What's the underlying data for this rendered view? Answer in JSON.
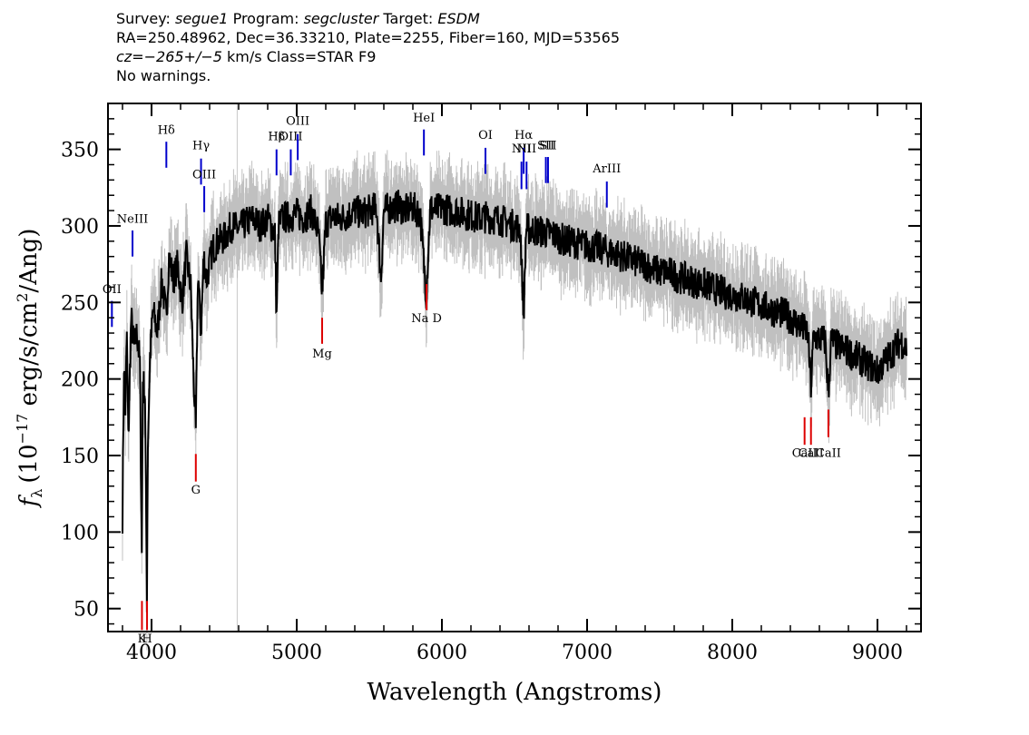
{
  "header": {
    "survey_label": "Survey:",
    "survey_value": "segue1",
    "program_label": "Program:",
    "program_value": "segcluster",
    "target_label": "Target:",
    "target_value": "ESDM",
    "line2": "RA=250.48962, Dec=36.33210, Plate=2255, Fiber=160, MJD=53565",
    "cz_value": "cz=−265+/−5",
    "cz_rest": " km/s Class=STAR F9",
    "line4": "No warnings."
  },
  "chart_data": {
    "type": "line",
    "xlabel": "Wavelength (Angstroms)",
    "ylabel_prefix": "f",
    "ylabel_sub": "λ",
    "ylabel_text": "(10",
    "ylabel_exp": "−17",
    "ylabel_text2": " erg/s/cm",
    "ylabel_exp2": "2",
    "ylabel_text3": "/Ang)",
    "xlim": [
      3700,
      9300
    ],
    "ylim": [
      35,
      380
    ],
    "x_ticks": [
      4000,
      5000,
      6000,
      7000,
      8000,
      9000
    ],
    "x_tick_labels": [
      "4000",
      "5000",
      "6000",
      "7000",
      "8000",
      "9000"
    ],
    "y_ticks": [
      50,
      100,
      150,
      200,
      250,
      300,
      350
    ],
    "y_tick_labels": [
      "50",
      "100",
      "150",
      "200",
      "250",
      "300",
      "350"
    ],
    "vertical_marker_x": 4590,
    "series": [
      {
        "x": [
          3800,
          3810,
          3820,
          3830,
          3840,
          3860,
          3880,
          3900,
          3920,
          3933,
          3940,
          3955,
          3968,
          3975,
          3990,
          4010,
          4040,
          4070,
          4102,
          4120,
          4150,
          4180,
          4210,
          4240,
          4270,
          4290,
          4305,
          4320,
          4340,
          4360,
          4380,
          4420,
          4460,
          4500,
          4550,
          4600,
          4650,
          4700,
          4750,
          4800,
          4850,
          4861,
          4875,
          4900,
          4950,
          5000,
          5050,
          5100,
          5150,
          5175,
          5200,
          5250,
          5300,
          5350,
          5400,
          5450,
          5500,
          5550,
          5580,
          5600,
          5650,
          5700,
          5750,
          5800,
          5850,
          5892,
          5920,
          5950,
          6000,
          6050,
          6100,
          6150,
          6200,
          6250,
          6300,
          6350,
          6400,
          6450,
          6500,
          6540,
          6563,
          6580,
          6600,
          6650,
          6700,
          6750,
          6800,
          6850,
          6900,
          6950,
          7000,
          7050,
          7100,
          7150,
          7200,
          7250,
          7300,
          7350,
          7400,
          7450,
          7500,
          7550,
          7600,
          7650,
          7700,
          7750,
          7800,
          7850,
          7900,
          7950,
          8000,
          8050,
          8100,
          8150,
          8200,
          8250,
          8300,
          8350,
          8400,
          8450,
          8498,
          8520,
          8542,
          8560,
          8600,
          8640,
          8662,
          8680,
          8720,
          8760,
          8800,
          8840,
          8880,
          8920,
          8960,
          9000,
          9040,
          9080,
          9120,
          9160,
          9200
        ],
        "y": [
          110,
          210,
          180,
          230,
          160,
          240,
          220,
          230,
          210,
          85,
          200,
          190,
          55,
          160,
          215,
          245,
          230,
          265,
          240,
          280,
          265,
          275,
          250,
          280,
          260,
          200,
          165,
          270,
          230,
          280,
          265,
          285,
          290,
          292,
          300,
          298,
          302,
          305,
          300,
          305,
          295,
          240,
          300,
          305,
          306,
          308,
          305,
          310,
          295,
          255,
          302,
          306,
          305,
          307,
          310,
          308,
          310,
          312,
          265,
          310,
          312,
          313,
          310,
          312,
          308,
          255,
          312,
          310,
          312,
          310,
          310,
          308,
          307,
          305,
          306,
          305,
          304,
          302,
          300,
          298,
          240,
          298,
          298,
          297,
          296,
          295,
          293,
          290,
          290,
          288,
          287,
          286,
          285,
          283,
          282,
          280,
          278,
          276,
          275,
          272,
          270,
          270,
          268,
          266,
          265,
          263,
          262,
          260,
          258,
          256,
          255,
          254,
          252,
          250,
          248,
          246,
          244,
          243,
          240,
          236,
          232,
          230,
          195,
          228,
          226,
          225,
          190,
          225,
          222,
          220,
          218,
          215,
          213,
          210,
          208,
          205,
          210,
          215,
          220,
          225,
          220
        ]
      }
    ],
    "emission_lines": [
      {
        "label": "Hδ",
        "x": 4102,
        "y1": 338,
        "y2": 355,
        "label_y": 360
      },
      {
        "label": "Hγ",
        "x": 4341,
        "y1": 327,
        "y2": 344,
        "label_y": 350
      },
      {
        "label": "OIII",
        "x": 4363,
        "y1": 309,
        "y2": 326,
        "label_y": 331
      },
      {
        "label": "NeIII",
        "x": 3869,
        "y1": 280,
        "y2": 297,
        "label_y": 302
      },
      {
        "label": "OII",
        "x": 3727,
        "y1": 234,
        "y2": 251,
        "label_y": 256
      },
      {
        "label": "Hβ",
        "x": 4861,
        "y1": 333,
        "y2": 350,
        "label_y": 356
      },
      {
        "label": "OIII",
        "x": 4959,
        "y1": 333,
        "y2": 350,
        "label_y": 356
      },
      {
        "label": "OIII",
        "x": 5007,
        "y1": 343,
        "y2": 360,
        "label_y": 366
      },
      {
        "label": "HeI",
        "x": 5876,
        "y1": 346,
        "y2": 363,
        "label_y": 368
      },
      {
        "label": "OI",
        "x": 6300,
        "y1": 334,
        "y2": 351,
        "label_y": 357
      },
      {
        "label": "NII",
        "x": 6548,
        "y1": 324,
        "y2": 342,
        "label_y": 348
      },
      {
        "label": "Hα",
        "x": 6563,
        "y1": 334,
        "y2": 351,
        "label_y": 357
      },
      {
        "label": "NII",
        "x": 6583,
        "y1": 324,
        "y2": 342,
        "label_y": 348
      },
      {
        "label": "SII",
        "x": 6716,
        "y1": 328,
        "y2": 345,
        "label_y": 350
      },
      {
        "label": "SII",
        "x": 6731,
        "y1": 328,
        "y2": 345,
        "label_y": 350
      },
      {
        "label": "ArIII",
        "x": 7136,
        "y1": 312,
        "y2": 329,
        "label_y": 335
      }
    ],
    "absorption_lines": [
      {
        "label": "K",
        "x": 3934,
        "y1": 36,
        "y2": 55,
        "label_y": 28
      },
      {
        "label": "H",
        "x": 3969,
        "y1": 36,
        "y2": 55,
        "label_y": 28
      },
      {
        "label": "G",
        "x": 4305,
        "y1": 133,
        "y2": 151,
        "label_y": 125
      },
      {
        "label": "Mg",
        "x": 5175,
        "y1": 223,
        "y2": 240,
        "label_y": 214
      },
      {
        "label": "Na D",
        "x": 5894,
        "y1": 245,
        "y2": 262,
        "label_y": 237
      },
      {
        "label": "CaII",
        "x": 8498,
        "y1": 157,
        "y2": 175,
        "label_y": 149
      },
      {
        "label": "CaII",
        "x": 8542,
        "y1": 157,
        "y2": 175,
        "label_y": 149
      },
      {
        "label": "CaII",
        "x": 8662,
        "y1": 162,
        "y2": 180,
        "label_y": 149
      }
    ],
    "colors": {
      "data": "#000000",
      "error": "#c0c0c0",
      "emission": "#0000cc",
      "absorption": "#dd0000"
    }
  }
}
